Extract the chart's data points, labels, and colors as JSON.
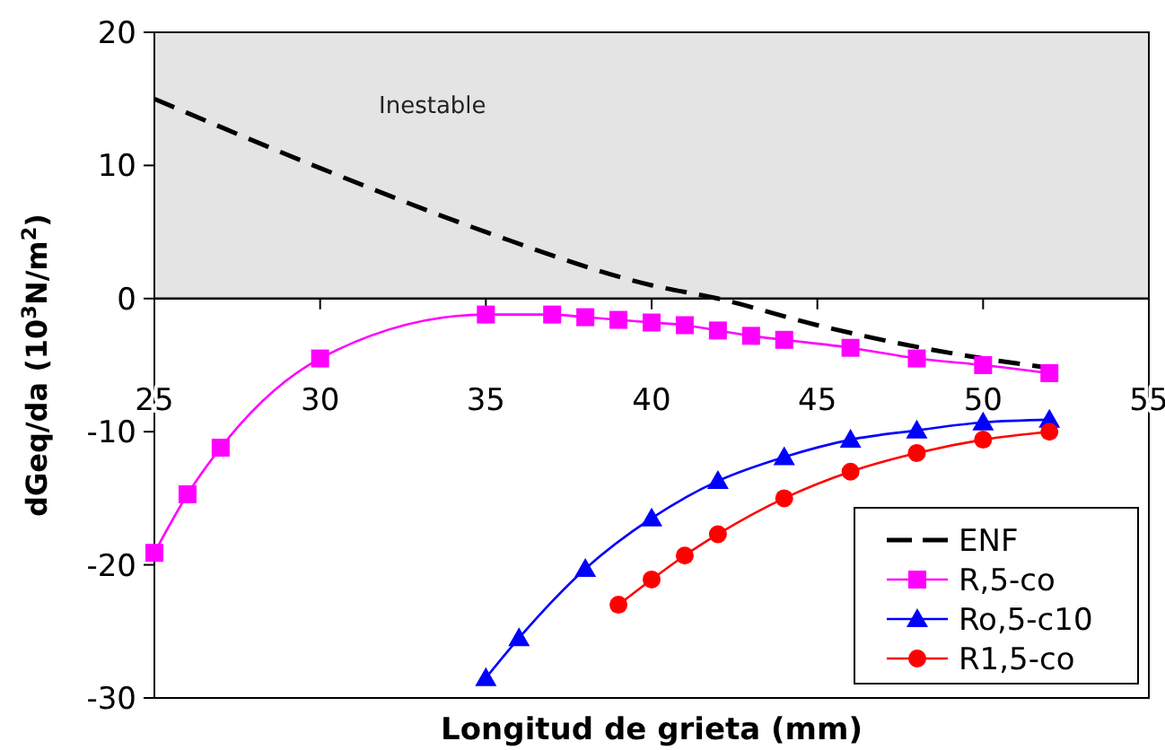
{
  "chart_data": {
    "type": "line",
    "xlabel": "Longitud de grieta   (mm)",
    "ylabel": "dGeq/da (10$^{3}$N/m$^{2}$)",
    "xlim": [
      25,
      55
    ],
    "xticks": [
      25,
      30,
      35,
      40,
      45,
      50,
      55
    ],
    "ylim": [
      -30,
      20
    ],
    "yticks": [
      -30,
      -20,
      -10,
      0,
      10,
      20
    ],
    "legend": "bottom right",
    "bands": [
      {
        "axis": "y",
        "from": 0,
        "to": 20,
        "label": "Inestable",
        "color": "#e4e4e4"
      }
    ],
    "series": [
      {
        "name": "ENF",
        "color": "#000000",
        "marker": "none",
        "line_style": "dashed",
        "x": [
          25,
          30,
          35,
          40,
          42,
          45,
          50,
          52
        ],
        "values": [
          15,
          9.8,
          5,
          1,
          0,
          -2,
          -4.5,
          -5.2
        ]
      },
      {
        "name": "R,5-co",
        "color": "#ff00ff",
        "marker": "square",
        "line_style": "solid",
        "x": [
          25,
          26,
          27,
          30,
          35,
          37,
          38,
          39,
          40,
          41,
          42,
          43,
          44,
          46,
          48,
          50,
          52
        ],
        "values": [
          -19.1,
          -14.7,
          -11.2,
          -4.5,
          -1.2,
          -1.2,
          -1.4,
          -1.6,
          -1.8,
          -2,
          -2.4,
          -2.8,
          -3.1,
          -3.7,
          -4.5,
          -5,
          -5.6
        ]
      },
      {
        "name": "Ro,5-c10",
        "color": "#0000ff",
        "marker": "triangle",
        "line_style": "solid",
        "x": [
          35,
          36,
          38,
          40,
          42,
          44,
          46,
          48,
          50,
          52
        ],
        "values": [
          -28.5,
          -25.5,
          -20.3,
          -16.5,
          -13.7,
          -11.9,
          -10.6,
          -9.9,
          -9.3,
          -9.1
        ]
      },
      {
        "name": "R1,5-co",
        "color": "#ff0000",
        "marker": "circle",
        "line_style": "solid",
        "x": [
          39,
          40,
          41,
          42,
          44,
          46,
          48,
          50,
          52
        ],
        "values": [
          -23,
          -21.1,
          -19.3,
          -17.7,
          -15,
          -13,
          -11.6,
          -10.6,
          -10
        ]
      }
    ]
  }
}
